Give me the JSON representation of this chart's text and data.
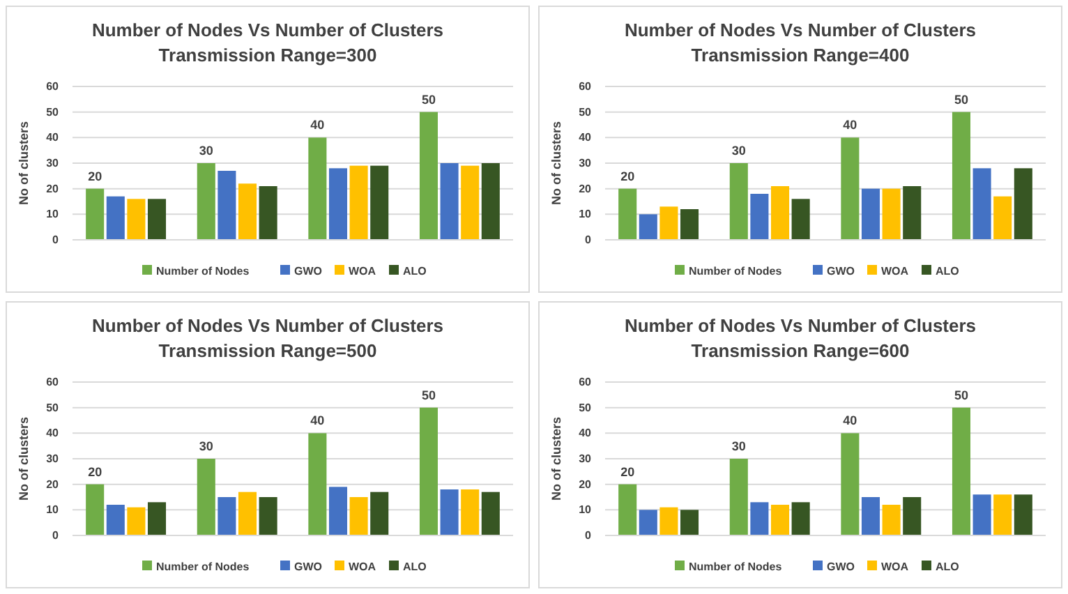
{
  "chart_data": [
    {
      "type": "bar",
      "title": "Number of Nodes Vs Number of Clusters",
      "subtitle": "Transmission Range=300",
      "ylabel": "No of clusters",
      "categories": [
        null,
        null,
        null,
        null
      ],
      "ylim": [
        0,
        60
      ],
      "yticks": [
        0,
        10,
        20,
        30,
        40,
        50,
        60
      ],
      "grid": "y",
      "legend": "bottom",
      "series": [
        {
          "name": "Number of Nodes",
          "color": "#70ad47",
          "values": [
            20,
            30,
            40,
            50
          ],
          "value_labels": [
            "20",
            "30",
            "40",
            "50"
          ]
        },
        {
          "name": "GWO",
          "color": "#4472c4",
          "values": [
            17,
            27,
            28,
            30
          ]
        },
        {
          "name": "WOA",
          "color": "#ffc000",
          "values": [
            16,
            22,
            29,
            29
          ]
        },
        {
          "name": "ALO",
          "color": "#375623",
          "values": [
            16,
            21,
            29,
            30
          ]
        }
      ]
    },
    {
      "type": "bar",
      "title": "Number of Nodes Vs Number of Clusters",
      "subtitle": "Transmission Range=400",
      "ylabel": "No of clusters",
      "categories": [
        null,
        null,
        null,
        null
      ],
      "ylim": [
        0,
        60
      ],
      "yticks": [
        0,
        10,
        20,
        30,
        40,
        50,
        60
      ],
      "grid": "y",
      "legend": "bottom",
      "series": [
        {
          "name": "Number of Nodes",
          "color": "#70ad47",
          "values": [
            20,
            30,
            40,
            50
          ],
          "value_labels": [
            "20",
            "30",
            "40",
            "50"
          ]
        },
        {
          "name": "GWO",
          "color": "#4472c4",
          "values": [
            10,
            18,
            20,
            28
          ]
        },
        {
          "name": "WOA",
          "color": "#ffc000",
          "values": [
            13,
            21,
            20,
            17
          ]
        },
        {
          "name": "ALO",
          "color": "#375623",
          "values": [
            12,
            16,
            21,
            28
          ]
        }
      ]
    },
    {
      "type": "bar",
      "title": "Number of Nodes Vs Number of Clusters",
      "subtitle": "Transmission Range=500",
      "ylabel": "No of clusters",
      "categories": [
        null,
        null,
        null,
        null
      ],
      "ylim": [
        0,
        60
      ],
      "yticks": [
        0,
        10,
        20,
        30,
        40,
        50,
        60
      ],
      "grid": "y",
      "legend": "bottom",
      "series": [
        {
          "name": "Number of Nodes",
          "color": "#70ad47",
          "values": [
            20,
            30,
            40,
            50
          ],
          "value_labels": [
            "20",
            "30",
            "40",
            "50"
          ]
        },
        {
          "name": "GWO",
          "color": "#4472c4",
          "values": [
            12,
            15,
            19,
            18
          ]
        },
        {
          "name": "WOA",
          "color": "#ffc000",
          "values": [
            11,
            17,
            15,
            18
          ]
        },
        {
          "name": "ALO",
          "color": "#375623",
          "values": [
            13,
            15,
            17,
            17
          ]
        }
      ]
    },
    {
      "type": "bar",
      "title": "Number of Nodes Vs Number of Clusters",
      "subtitle": "Transmission Range=600",
      "ylabel": "No of clusters",
      "categories": [
        null,
        null,
        null,
        null
      ],
      "ylim": [
        0,
        60
      ],
      "yticks": [
        0,
        10,
        20,
        30,
        40,
        50,
        60
      ],
      "grid": "y",
      "legend": "bottom",
      "series": [
        {
          "name": "Number of Nodes",
          "color": "#70ad47",
          "values": [
            20,
            30,
            40,
            50
          ],
          "value_labels": [
            "20",
            "30",
            "40",
            "50"
          ]
        },
        {
          "name": "GWO",
          "color": "#4472c4",
          "values": [
            10,
            13,
            15,
            16
          ]
        },
        {
          "name": "WOA",
          "color": "#ffc000",
          "values": [
            11,
            12,
            12,
            16
          ]
        },
        {
          "name": "ALO",
          "color": "#375623",
          "values": [
            10,
            13,
            15,
            16
          ]
        }
      ]
    }
  ]
}
